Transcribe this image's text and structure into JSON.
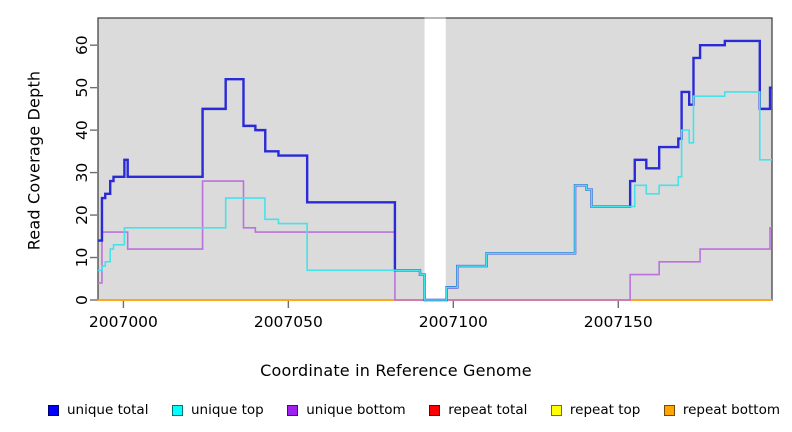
{
  "chart_data": {
    "type": "line",
    "subtype": "step-after",
    "title": "",
    "xlabel": "Coordinate in Reference Genome",
    "ylabel": "Read Coverage Depth",
    "xlim": [
      2006992.3,
      2007196.6
    ],
    "ylim": [
      0,
      66.4
    ],
    "x_ticks": [
      2007000,
      2007050,
      2007100,
      2007150
    ],
    "y_ticks": [
      0,
      10,
      20,
      30,
      40,
      50,
      60
    ],
    "grid": false,
    "panel_background": "#dbdbdb",
    "frame_color": "#454545",
    "tick_color": "#6e6e6e",
    "gap_band": {
      "x0": 2007091.3,
      "x1": 2007097.7,
      "color": "#ffffff"
    },
    "legend_position": "bottom",
    "series": [
      {
        "name": "unique total",
        "color": "#0000ff",
        "line_color": "#2a2ad6",
        "width": 2.4,
        "points": [
          [
            2006992.3,
            14
          ],
          [
            2006993.5,
            24
          ],
          [
            2006994.5,
            25
          ],
          [
            2006996,
            28
          ],
          [
            2006997,
            29
          ],
          [
            2007000.3,
            33
          ],
          [
            2007001.3,
            29
          ],
          [
            2007024,
            45
          ],
          [
            2007031,
            52
          ],
          [
            2007036.4,
            41
          ],
          [
            2007040,
            40
          ],
          [
            2007043,
            35
          ],
          [
            2007047,
            34
          ],
          [
            2007055.7,
            23
          ],
          [
            2007082.3,
            7
          ],
          [
            2007089.9,
            6
          ],
          [
            2007091.3,
            0
          ],
          [
            2007098,
            3
          ],
          [
            2007101.2,
            8
          ],
          [
            2007110.1,
            11
          ],
          [
            2007136.9,
            27
          ],
          [
            2007140.4,
            26
          ],
          [
            2007141.9,
            22
          ],
          [
            2007153.6,
            28
          ],
          [
            2007155,
            33
          ],
          [
            2007158.5,
            31
          ],
          [
            2007162.4,
            36
          ],
          [
            2007168.2,
            38
          ],
          [
            2007169.2,
            49
          ],
          [
            2007171.5,
            46
          ],
          [
            2007172.8,
            57
          ],
          [
            2007174.8,
            60
          ],
          [
            2007182.3,
            61
          ],
          [
            2007192.9,
            45
          ],
          [
            2007196,
            50
          ]
        ]
      },
      {
        "name": "unique top",
        "color": "#00ffff",
        "line_color": "#45e2ea",
        "width": 1.6,
        "points": [
          [
            2006992.3,
            7
          ],
          [
            2006993.5,
            8
          ],
          [
            2006994.5,
            9
          ],
          [
            2006996,
            12
          ],
          [
            2006997,
            13
          ],
          [
            2007000.3,
            17
          ],
          [
            2007031,
            24
          ],
          [
            2007042.9,
            19
          ],
          [
            2007047,
            18
          ],
          [
            2007055.7,
            7
          ],
          [
            2007089.9,
            6
          ],
          [
            2007091.3,
            0
          ],
          [
            2007098,
            3
          ],
          [
            2007101.2,
            8
          ],
          [
            2007110.1,
            11
          ],
          [
            2007136.9,
            27
          ],
          [
            2007140.4,
            26
          ],
          [
            2007141.9,
            22
          ],
          [
            2007155,
            27
          ],
          [
            2007158.5,
            25
          ],
          [
            2007162.4,
            27
          ],
          [
            2007168.2,
            29
          ],
          [
            2007169.2,
            40
          ],
          [
            2007171.5,
            37
          ],
          [
            2007172.8,
            48
          ],
          [
            2007182.3,
            49
          ],
          [
            2007192.9,
            33
          ]
        ]
      },
      {
        "name": "unique bottom",
        "color": "#a020f0",
        "line_color": "#bb72dc",
        "width": 1.6,
        "points": [
          [
            2006992.3,
            4
          ],
          [
            2006993.5,
            16
          ],
          [
            2007001.3,
            12
          ],
          [
            2007024,
            28
          ],
          [
            2007036.4,
            17
          ],
          [
            2007040,
            16
          ],
          [
            2007082.3,
            0
          ],
          [
            2007153.6,
            6
          ],
          [
            2007162.4,
            9
          ],
          [
            2007174.8,
            12
          ],
          [
            2007196,
            17
          ]
        ]
      },
      {
        "name": "repeat total",
        "color": "#ff0000",
        "line_color": "#e03030",
        "width": 1.5,
        "points": [
          [
            2006992.3,
            0
          ]
        ]
      },
      {
        "name": "repeat top",
        "color": "#ffff00",
        "line_color": "#f2e400",
        "width": 1.5,
        "points": [
          [
            2006992.3,
            0
          ]
        ]
      },
      {
        "name": "repeat bottom",
        "color": "#ffa500",
        "line_color": "#ffa520",
        "width": 2,
        "points": [
          [
            2006992.3,
            0
          ]
        ]
      }
    ],
    "draw_order": [
      3,
      4,
      5,
      2,
      0,
      1
    ]
  }
}
